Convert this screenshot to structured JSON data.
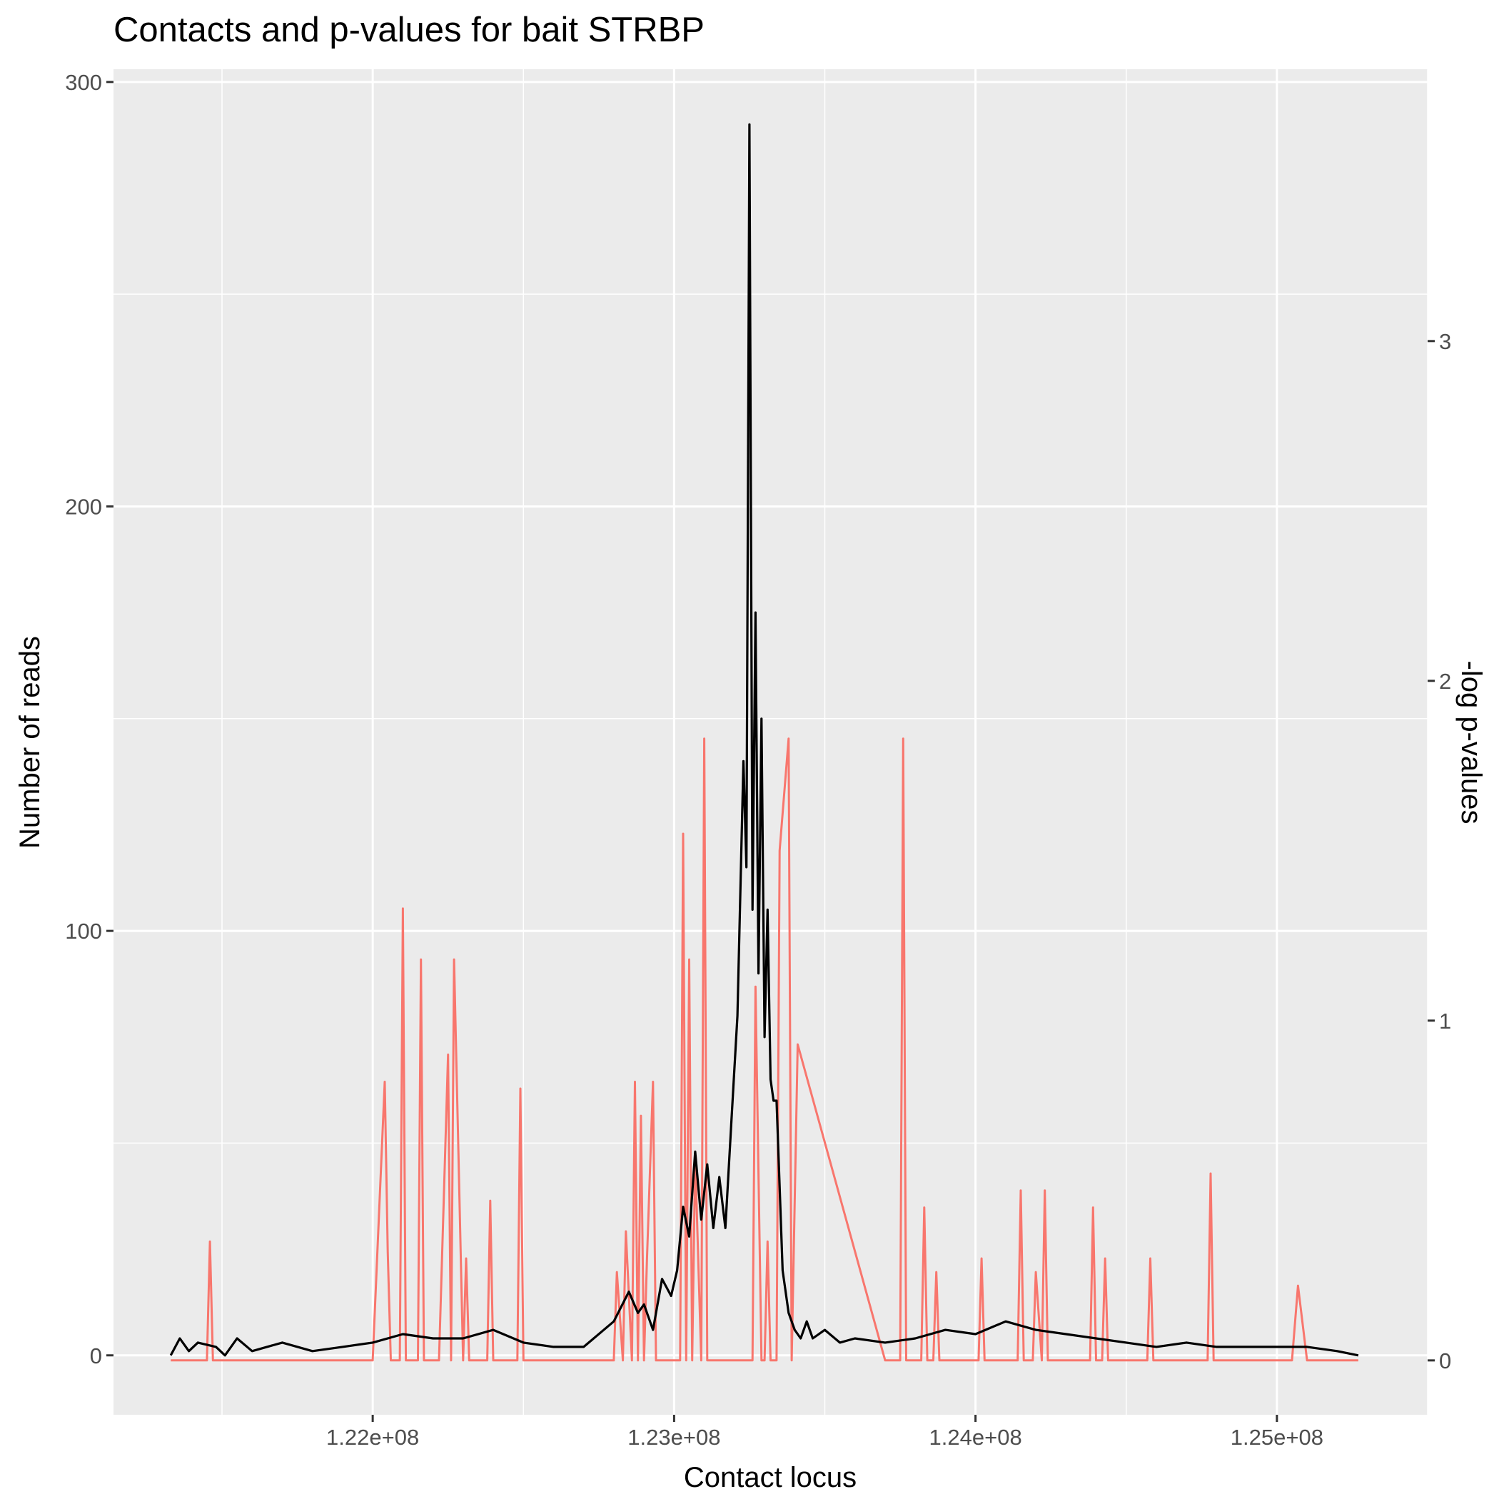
{
  "chart_data": {
    "type": "line",
    "title": "Contacts and p-values for bait STRBP",
    "xlabel": "Contact locus",
    "ylabel": "Number of reads",
    "y2label": "-log p-values",
    "xlim": [
      121140000,
      125500000
    ],
    "ylim": [
      -14,
      303
    ],
    "y2lim": [
      -0.16,
      3.8
    ],
    "x_ticks": [
      122000000,
      123000000,
      124000000,
      125000000
    ],
    "x_tick_labels": [
      "1.22e+08",
      "1.23e+08",
      "1.24e+08",
      "1.25e+08"
    ],
    "y_ticks": [
      0,
      100,
      200,
      300
    ],
    "y_tick_labels": [
      "0",
      "100",
      "200",
      "300"
    ],
    "y2_ticks": [
      0,
      1,
      2,
      3
    ],
    "y2_tick_labels": [
      "0",
      "1",
      "2",
      "3"
    ],
    "grid": true,
    "legend": "none",
    "colors": {
      "panel": "#ebebeb",
      "grid": "#ffffff",
      "reads": "#000000",
      "pvalues": "#f8766d"
    },
    "series": [
      {
        "axis": "left",
        "color": "#000000",
        "x": [
          121330000,
          121360000,
          121390000,
          121420000,
          121480000,
          121510000,
          121550000,
          121600000,
          121700000,
          121800000,
          121900000,
          122000000,
          122100000,
          122200000,
          122300000,
          122400000,
          122500000,
          122600000,
          122700000,
          122800000,
          122850000,
          122880000,
          122900000,
          122930000,
          122960000,
          122990000,
          123010000,
          123030000,
          123050000,
          123070000,
          123090000,
          123110000,
          123130000,
          123150000,
          123170000,
          123190000,
          123210000,
          123230000,
          123240000,
          123250000,
          123260000,
          123270000,
          123280000,
          123290000,
          123300000,
          123310000,
          123320000,
          123330000,
          123340000,
          123360000,
          123380000,
          123400000,
          123420000,
          123440000,
          123460000,
          123500000,
          123550000,
          123600000,
          123700000,
          123800000,
          123900000,
          124000000,
          124100000,
          124200000,
          124300000,
          124400000,
          124500000,
          124600000,
          124700000,
          124800000,
          124900000,
          125000000,
          125100000,
          125200000,
          125270000
        ],
        "y": [
          0,
          4,
          1,
          3,
          2,
          0,
          4,
          1,
          3,
          1,
          2,
          3,
          5,
          4,
          4,
          6,
          3,
          2,
          2,
          8,
          15,
          10,
          12,
          6,
          18,
          14,
          20,
          35,
          28,
          48,
          32,
          45,
          30,
          42,
          30,
          55,
          80,
          140,
          115,
          290,
          105,
          175,
          90,
          150,
          75,
          105,
          65,
          60,
          60,
          20,
          10,
          6,
          4,
          8,
          4,
          6,
          3,
          4,
          3,
          4,
          6,
          5,
          8,
          6,
          5,
          4,
          3,
          2,
          3,
          2,
          2,
          2,
          2,
          1,
          0
        ]
      },
      {
        "axis": "right",
        "color": "#f8766d",
        "x": [
          121330000,
          121450000,
          121460000,
          121470000,
          121500000,
          122000000,
          122040000,
          122050000,
          122060000,
          122090000,
          122100000,
          122110000,
          122150000,
          122160000,
          122170000,
          122220000,
          122250000,
          122260000,
          122270000,
          122300000,
          122310000,
          122320000,
          122380000,
          122390000,
          122400000,
          122480000,
          122490000,
          122500000,
          122800000,
          122810000,
          122830000,
          122840000,
          122860000,
          122870000,
          122880000,
          122890000,
          122900000,
          122910000,
          122930000,
          122940000,
          122990000,
          123020000,
          123030000,
          123040000,
          123050000,
          123060000,
          123070000,
          123090000,
          123100000,
          123110000,
          123200000,
          123260000,
          123270000,
          123290000,
          123300000,
          123310000,
          123320000,
          123340000,
          123350000,
          123380000,
          123390000,
          123410000,
          123700000,
          123750000,
          123760000,
          123770000,
          123820000,
          123830000,
          123840000,
          123860000,
          123870000,
          123880000,
          124010000,
          124020000,
          124030000,
          124140000,
          124150000,
          124160000,
          124190000,
          124200000,
          124220000,
          124230000,
          124240000,
          124380000,
          124390000,
          124400000,
          124420000,
          124430000,
          124440000,
          124570000,
          124580000,
          124590000,
          124770000,
          124780000,
          124790000,
          125050000,
          125070000,
          125100000,
          125270000
        ],
        "y": [
          0,
          0,
          0.35,
          0,
          0,
          0,
          0.82,
          0.32,
          0,
          0,
          1.33,
          0,
          0,
          1.18,
          0,
          0,
          0.9,
          0,
          1.18,
          0,
          0.3,
          0,
          0,
          0.47,
          0,
          0,
          0.8,
          0,
          0,
          0.26,
          0,
          0.38,
          0,
          0.82,
          0,
          0.72,
          0,
          0.3,
          0.82,
          0,
          0,
          0,
          1.55,
          0,
          1.18,
          0,
          0.6,
          0,
          1.83,
          0,
          0,
          0,
          1.1,
          0,
          0,
          0.35,
          0,
          0,
          1.5,
          1.83,
          0,
          0.93,
          0,
          0,
          1.83,
          0,
          0,
          0.45,
          0,
          0,
          0.26,
          0,
          0,
          0.3,
          0,
          0,
          0.5,
          0,
          0,
          0.26,
          0,
          0.5,
          0,
          0,
          0.45,
          0,
          0,
          0.3,
          0,
          0,
          0.3,
          0,
          0,
          0.55,
          0,
          0,
          0.22,
          0,
          0
        ]
      }
    ]
  }
}
